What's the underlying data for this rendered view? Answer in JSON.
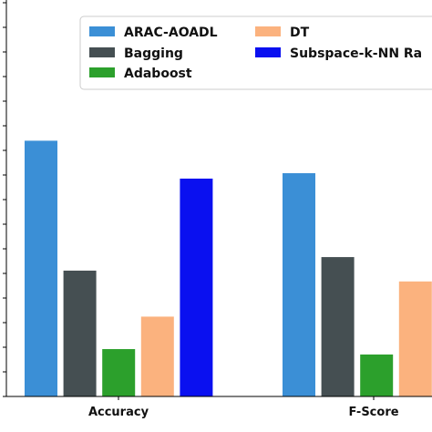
{
  "chart_data": {
    "type": "bar",
    "categories": [
      "Accuracy",
      "F-Score"
    ],
    "series": [
      {
        "name": "ARAC-AOADL",
        "color": "#3b8fd6",
        "values": [
          0.948,
          0.936
        ]
      },
      {
        "name": "Bagging",
        "color": "#454f52",
        "values": [
          0.9,
          0.905
        ]
      },
      {
        "name": "Adaboost",
        "color": "#2ca02c",
        "values": [
          0.871,
          0.869
        ]
      },
      {
        "name": "DT",
        "color": "#fbb27e",
        "values": [
          0.883,
          0.896
        ]
      },
      {
        "name": "Subspace-k-NN Ra",
        "color": "#0a10f0",
        "values": [
          0.934,
          null
        ]
      }
    ],
    "ylim": [
      0.8535,
      1.0
    ],
    "grid": false,
    "legend_position": "top"
  }
}
